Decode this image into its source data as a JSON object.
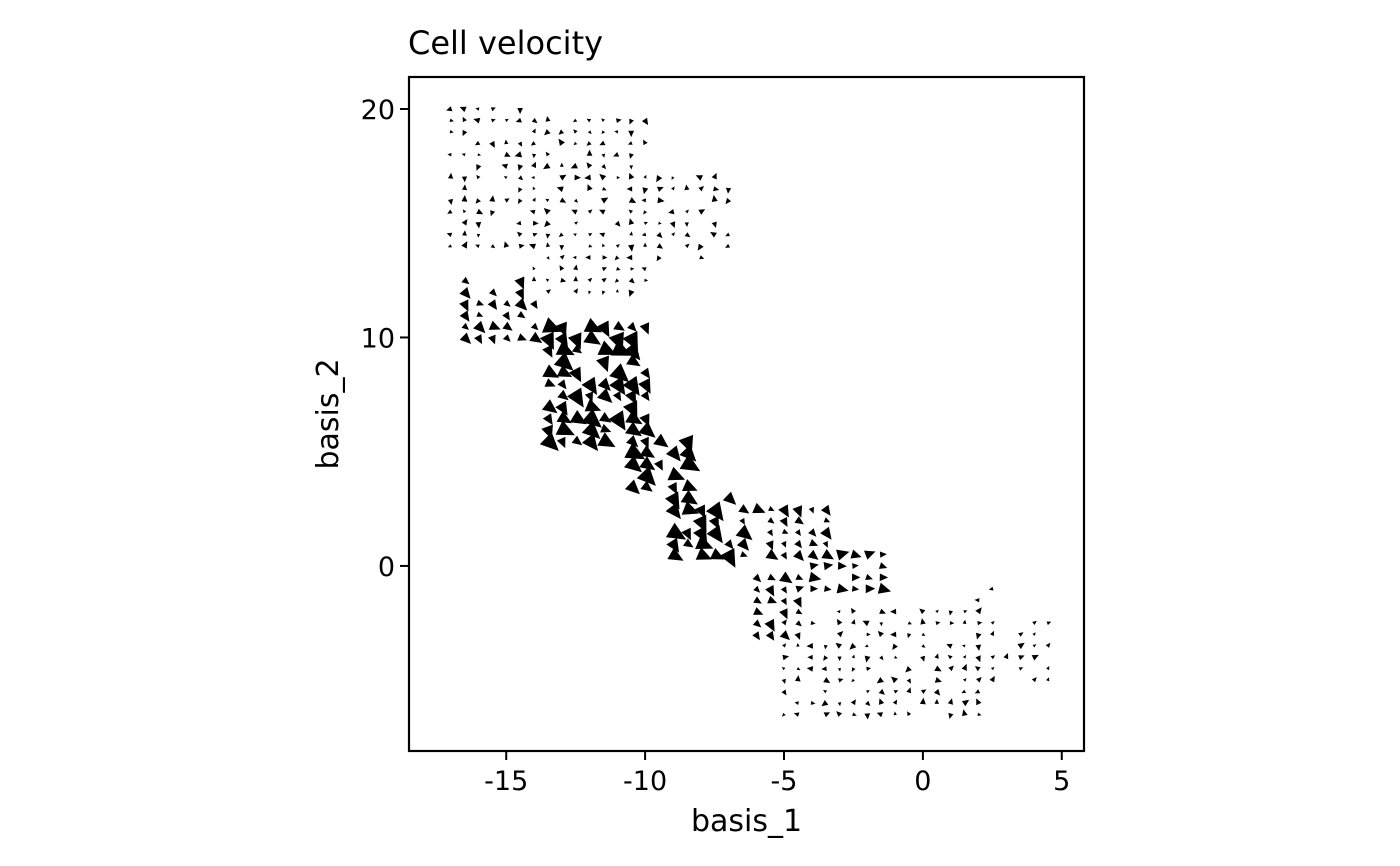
{
  "chart_data": {
    "type": "scatter",
    "subtype": "velocity-arrow-grid",
    "title": "Cell velocity",
    "xlabel": "basis_1",
    "ylabel": "basis_2",
    "xlim": [
      -18.5,
      5.8
    ],
    "ylim": [
      -8.1,
      21.4
    ],
    "x_ticks": [
      -15,
      -10,
      -5,
      0,
      5
    ],
    "x_tick_labels": [
      "-15",
      "-10",
      "-5",
      "0",
      "5"
    ],
    "y_ticks": [
      0,
      10,
      20
    ],
    "y_tick_labels": [
      "0",
      "10",
      "20"
    ],
    "grid": false,
    "legend": "none",
    "arrow_color": "#000000",
    "clusters": [
      {
        "x": [
          -17.2,
          -14.0
        ],
        "y": [
          13.8,
          20.0
        ],
        "direction": "mixed",
        "magnitude": "small"
      },
      {
        "x": [
          -14.0,
          -10.0
        ],
        "y": [
          12.0,
          19.5
        ],
        "direction": "mixed",
        "magnitude": "small"
      },
      {
        "x": [
          -10.5,
          -7.0
        ],
        "y": [
          13.5,
          17.0
        ],
        "direction": "mixed",
        "magnitude": "small"
      },
      {
        "x": [
          -16.5,
          -14.0
        ],
        "y": [
          10.0,
          12.5
        ],
        "direction": "southeast",
        "magnitude": "medium"
      },
      {
        "x": [
          -13.5,
          -10.0
        ],
        "y": [
          5.5,
          10.5
        ],
        "direction": "southeast",
        "magnitude": "large"
      },
      {
        "x": [
          -10.5,
          -8.5
        ],
        "y": [
          3.5,
          5.5
        ],
        "direction": "southeast",
        "magnitude": "large"
      },
      {
        "x": [
          -9.0,
          -6.5
        ],
        "y": [
          0.5,
          3.0
        ],
        "direction": "southeast",
        "magnitude": "large"
      },
      {
        "x": [
          -6.5,
          -3.5
        ],
        "y": [
          0.5,
          2.5
        ],
        "direction": "southeast",
        "magnitude": "medium"
      },
      {
        "x": [
          -4.5,
          -1.5
        ],
        "y": [
          -1.0,
          0.5
        ],
        "direction": "east",
        "magnitude": "medium"
      },
      {
        "x": [
          -6.0,
          -4.5
        ],
        "y": [
          -3.0,
          -0.5
        ],
        "direction": "southeast",
        "magnitude": "medium"
      },
      {
        "x": [
          -5.0,
          2.0
        ],
        "y": [
          -6.8,
          -1.8
        ],
        "direction": "mixed",
        "magnitude": "small"
      },
      {
        "x": [
          1.5,
          4.8
        ],
        "y": [
          -5.0,
          -2.2
        ],
        "direction": "northeast",
        "magnitude": "small"
      },
      {
        "x": [
          1.8,
          2.8
        ],
        "y": [
          -1.6,
          -0.6
        ],
        "direction": "west",
        "magnitude": "small"
      }
    ]
  }
}
